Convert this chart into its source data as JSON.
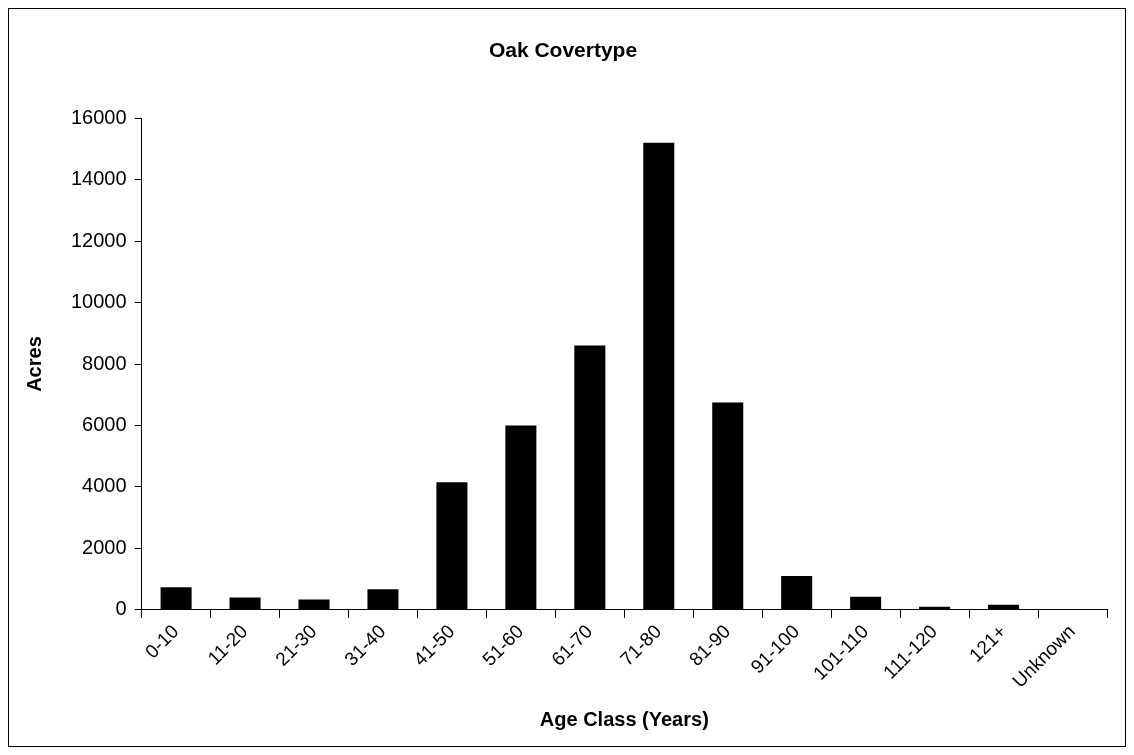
{
  "chart_data": {
    "type": "bar",
    "title": "Oak Covertype",
    "xlabel": "Age Class (Years)",
    "ylabel": "Acres",
    "categories": [
      "0-10",
      "11-20",
      "21-30",
      "31-40",
      "41-50",
      "51-60",
      "61-70",
      "71-80",
      "81-90",
      "91-100",
      "101-110",
      "111-120",
      "121+",
      "Unknown"
    ],
    "values": [
      740,
      400,
      340,
      670,
      4150,
      6000,
      8600,
      15200,
      6750,
      1100,
      430,
      100,
      170,
      0
    ],
    "color": "#000000",
    "ylim": [
      0,
      16000
    ],
    "yticks": [
      0,
      2000,
      4000,
      6000,
      8000,
      10000,
      12000,
      14000,
      16000
    ],
    "grid": false,
    "legend": false
  }
}
